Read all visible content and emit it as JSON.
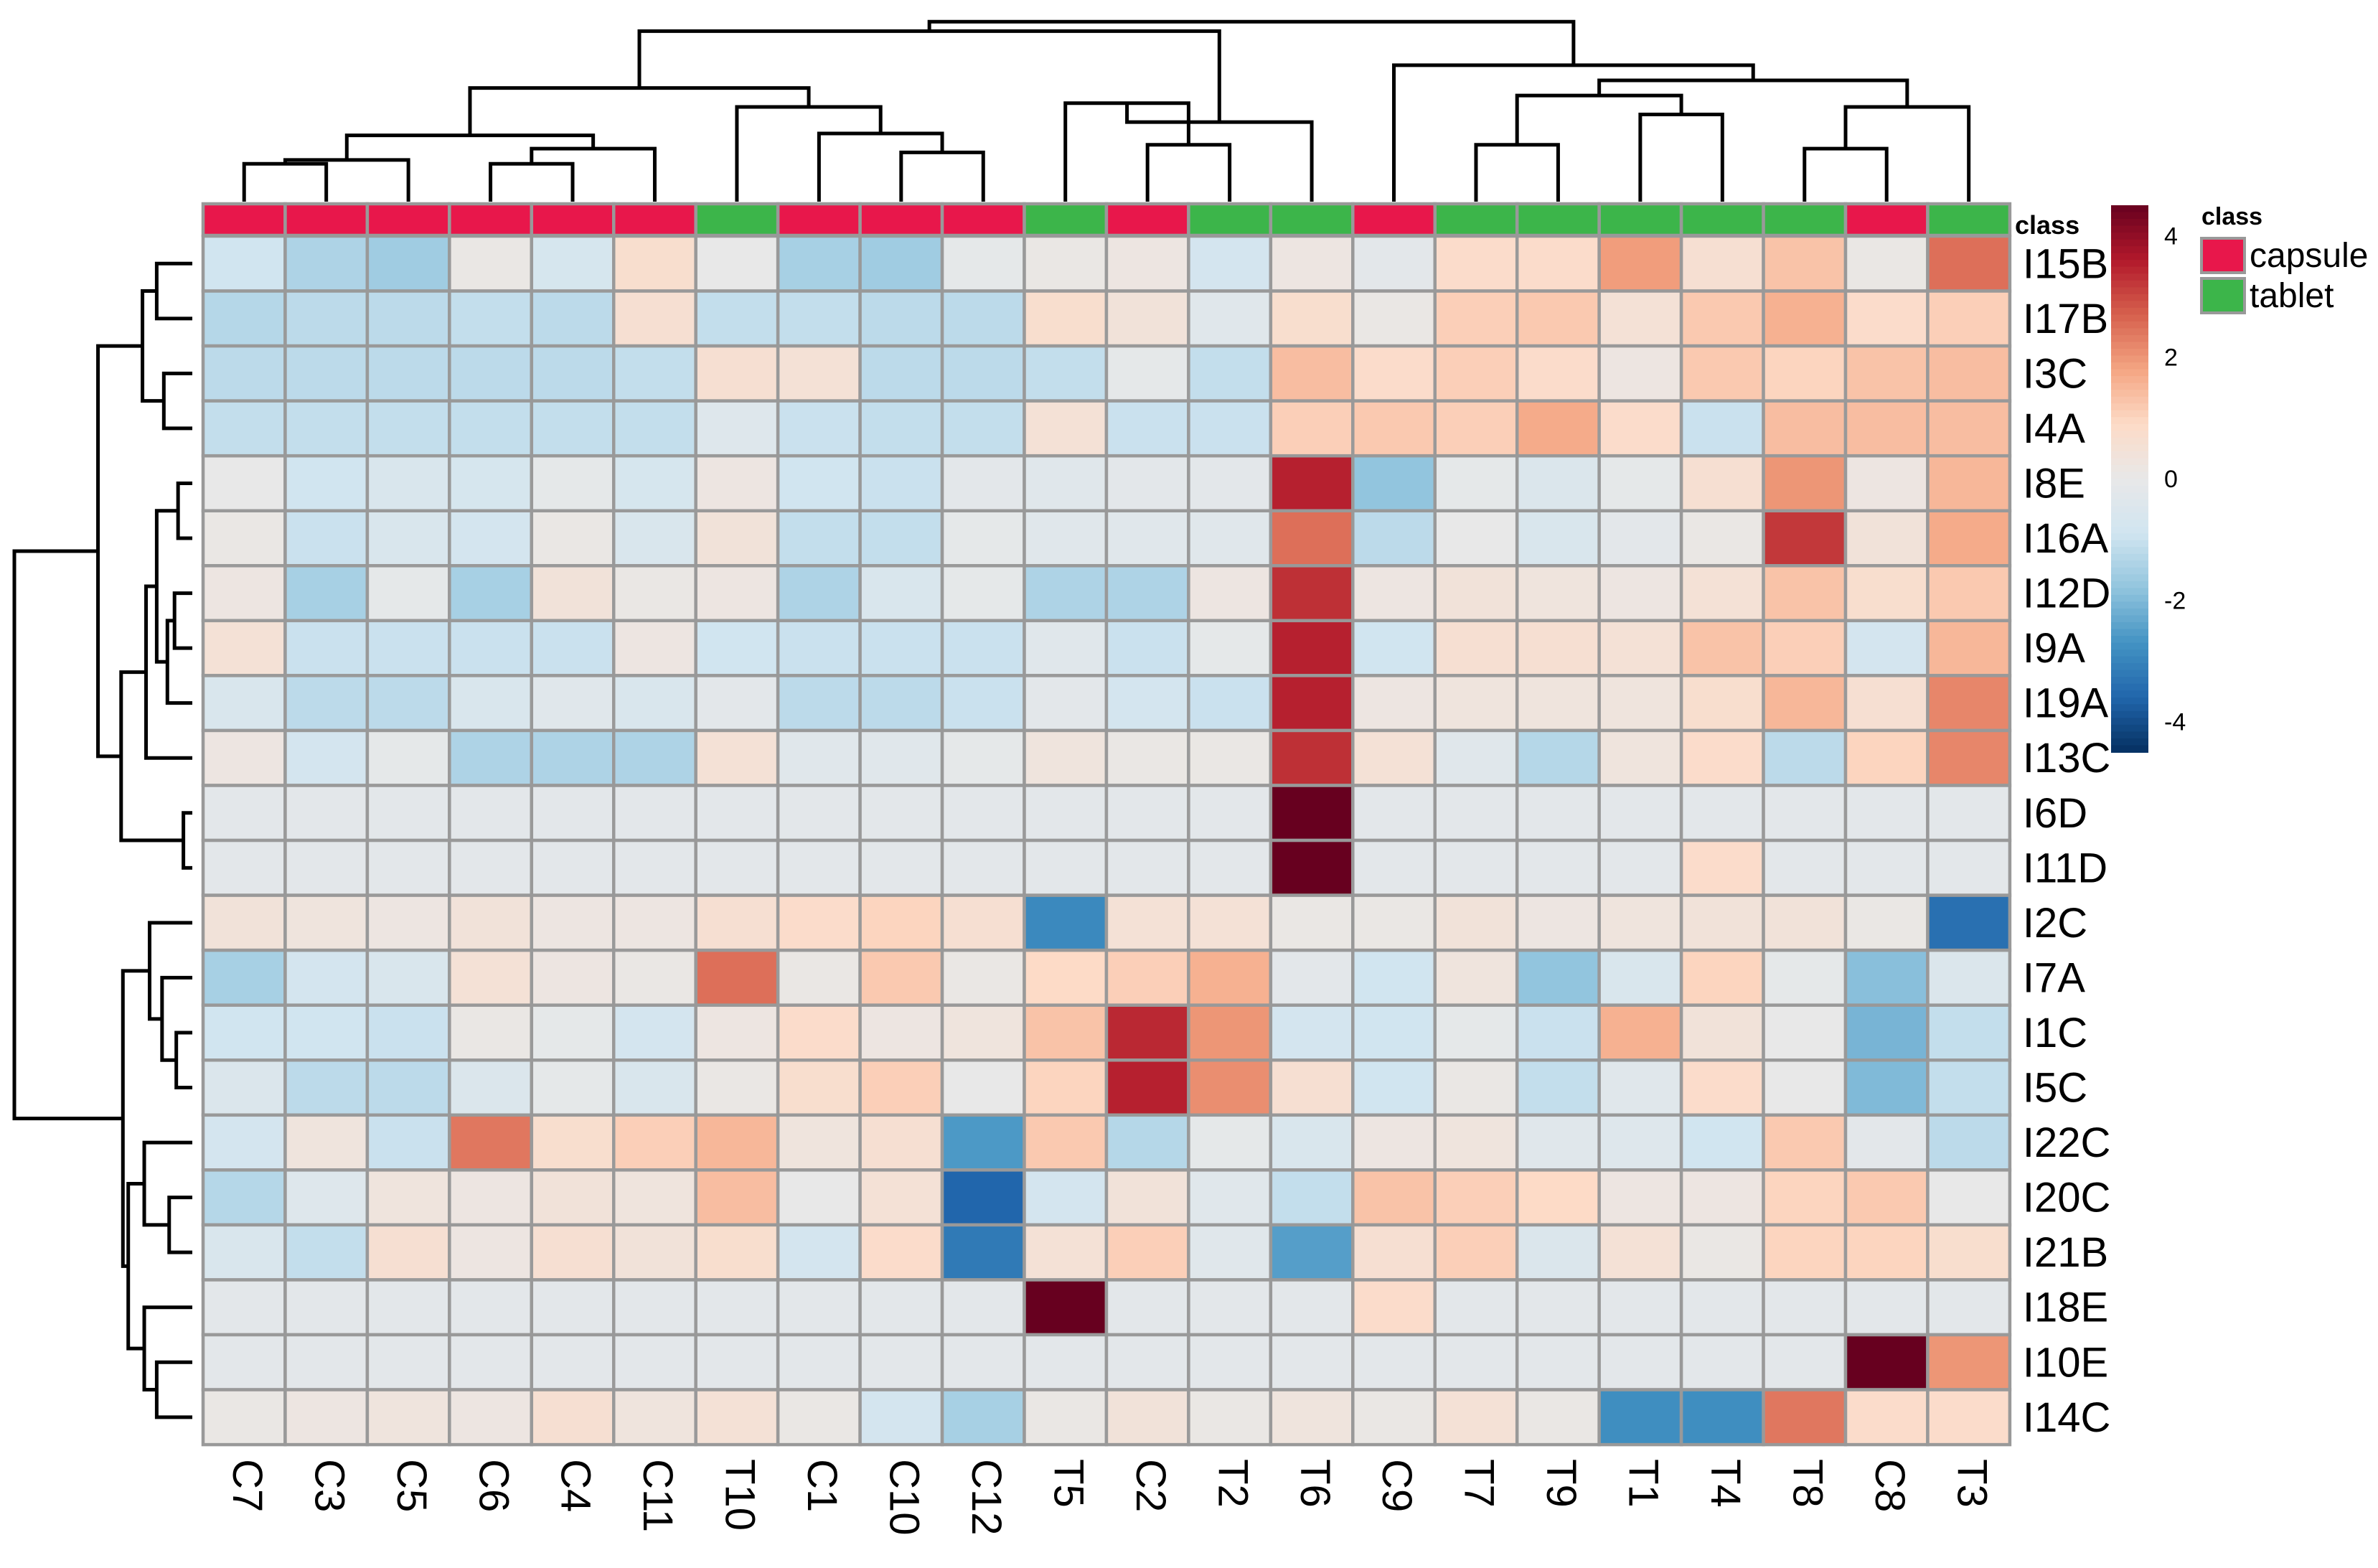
{
  "chart_data": {
    "type": "heatmap",
    "title": "",
    "rows": [
      "I15B",
      "I17B",
      "I3C",
      "I4A",
      "I8E",
      "I16A",
      "I12D",
      "I9A",
      "I19A",
      "I13C",
      "I6D",
      "I11D",
      "I2C",
      "I7A",
      "I1C",
      "I5C",
      "I22C",
      "I20C",
      "I21B",
      "I18E",
      "I10E",
      "I14C"
    ],
    "columns": [
      "C7",
      "C3",
      "C5",
      "C6",
      "C4",
      "C11",
      "T10",
      "C1",
      "C10",
      "C12",
      "T5",
      "C2",
      "T2",
      "T6",
      "C9",
      "T7",
      "T9",
      "T1",
      "T4",
      "T8",
      "C8",
      "T3"
    ],
    "column_class": [
      "capsule",
      "capsule",
      "capsule",
      "capsule",
      "capsule",
      "capsule",
      "tablet",
      "capsule",
      "capsule",
      "capsule",
      "tablet",
      "capsule",
      "tablet",
      "tablet",
      "capsule",
      "tablet",
      "tablet",
      "tablet",
      "tablet",
      "tablet",
      "capsule",
      "tablet"
    ],
    "values": [
      [
        -0.9,
        -1.4,
        -1.6,
        0.1,
        -0.7,
        0.7,
        0.0,
        -1.5,
        -1.6,
        -0.1,
        0.1,
        0.2,
        -0.8,
        0.2,
        -0.2,
        0.8,
        0.8,
        1.9,
        0.6,
        1.3,
        0.1,
        2.5
      ],
      [
        -1.3,
        -1.2,
        -1.2,
        -1.1,
        -1.2,
        0.6,
        -1.1,
        -1.1,
        -1.2,
        -1.2,
        0.7,
        0.4,
        -0.3,
        0.7,
        0.1,
        1.1,
        1.2,
        0.5,
        1.2,
        1.6,
        0.8,
        1.1
      ],
      [
        -1.2,
        -1.2,
        -1.2,
        -1.2,
        -1.2,
        -1.1,
        0.6,
        0.5,
        -1.2,
        -1.2,
        -1.1,
        -0.1,
        -1.1,
        1.4,
        0.8,
        1.1,
        0.8,
        0.2,
        1.2,
        1.0,
        1.3,
        1.4
      ],
      [
        -1.1,
        -1.1,
        -1.1,
        -1.1,
        -1.1,
        -1.1,
        -0.4,
        -1.0,
        -1.1,
        -1.1,
        0.5,
        -1.0,
        -1.0,
        1.1,
        1.2,
        1.1,
        1.7,
        0.8,
        -1.0,
        1.4,
        1.4,
        1.4
      ],
      [
        0.0,
        -0.9,
        -0.6,
        -0.7,
        -0.1,
        -0.7,
        0.2,
        -0.9,
        -1.0,
        -0.2,
        -0.3,
        -0.2,
        -0.2,
        3.5,
        -1.8,
        -0.1,
        -0.5,
        -0.1,
        0.6,
        2.0,
        0.2,
        1.5
      ],
      [
        0.1,
        -1.0,
        -0.6,
        -0.8,
        0.1,
        -0.6,
        0.4,
        -1.1,
        -1.1,
        -0.1,
        -0.3,
        -0.3,
        -0.3,
        2.5,
        -1.2,
        0.0,
        -0.6,
        -0.2,
        0.1,
        3.2,
        0.4,
        1.7
      ],
      [
        0.2,
        -1.5,
        -0.1,
        -1.5,
        0.4,
        0.1,
        0.2,
        -1.4,
        -0.6,
        -0.1,
        -1.4,
        -1.4,
        0.2,
        3.3,
        0.2,
        0.4,
        0.3,
        0.2,
        0.5,
        1.3,
        0.7,
        1.2
      ],
      [
        0.5,
        -1.0,
        -1.0,
        -1.0,
        -1.0,
        0.2,
        -0.9,
        -1.0,
        -1.0,
        -1.0,
        -0.3,
        -1.0,
        -0.1,
        3.5,
        -0.9,
        0.6,
        0.6,
        0.5,
        1.3,
        1.1,
        -0.8,
        1.5
      ],
      [
        -0.6,
        -1.2,
        -1.2,
        -0.6,
        -0.3,
        -0.6,
        -0.2,
        -1.2,
        -1.2,
        -1.0,
        -0.2,
        -0.8,
        -1.0,
        3.5,
        0.2,
        0.3,
        0.3,
        0.3,
        0.7,
        1.5,
        0.6,
        2.2
      ],
      [
        0.2,
        -0.8,
        -0.1,
        -1.4,
        -1.4,
        -1.4,
        0.5,
        -0.3,
        -0.3,
        -0.1,
        0.3,
        0.1,
        0.1,
        3.3,
        0.5,
        -0.3,
        -1.3,
        0.3,
        0.8,
        -1.2,
        1.0,
        2.2
      ],
      [
        -0.2,
        -0.2,
        -0.2,
        -0.2,
        -0.2,
        -0.2,
        -0.2,
        -0.2,
        -0.2,
        -0.2,
        -0.2,
        -0.2,
        -0.2,
        5.0,
        -0.2,
        -0.2,
        -0.2,
        -0.2,
        -0.2,
        -0.2,
        -0.2,
        -0.2
      ],
      [
        -0.2,
        -0.2,
        -0.2,
        -0.2,
        -0.2,
        -0.2,
        -0.2,
        -0.2,
        -0.2,
        -0.2,
        -0.2,
        -0.2,
        -0.2,
        5.0,
        -0.2,
        -0.2,
        -0.2,
        -0.2,
        0.8,
        -0.2,
        -0.2,
        -0.2
      ],
      [
        0.4,
        0.3,
        0.2,
        0.4,
        0.2,
        0.2,
        0.6,
        0.8,
        1.0,
        0.6,
        -2.9,
        0.5,
        0.5,
        0.1,
        0.1,
        0.4,
        0.2,
        0.3,
        0.4,
        0.4,
        0.1,
        -3.4
      ],
      [
        -1.5,
        -0.8,
        -0.6,
        0.5,
        0.2,
        0.1,
        2.5,
        0.1,
        1.2,
        0.1,
        0.9,
        1.1,
        1.6,
        -0.2,
        -0.9,
        0.3,
        -1.8,
        -0.6,
        1.0,
        -0.1,
        -1.9,
        -0.5
      ],
      [
        -0.9,
        -0.9,
        -1.0,
        0.1,
        -0.1,
        -0.8,
        0.2,
        0.8,
        0.2,
        0.3,
        1.3,
        3.4,
        2.0,
        -0.8,
        -0.9,
        -0.1,
        -1.0,
        1.6,
        0.4,
        0.0,
        -2.1,
        -1.1
      ],
      [
        -0.5,
        -1.2,
        -1.2,
        -0.5,
        -0.1,
        -0.6,
        0.1,
        0.7,
        1.1,
        0.0,
        1.0,
        3.5,
        2.1,
        0.6,
        -0.9,
        0.1,
        -1.1,
        -0.3,
        0.8,
        0.0,
        -2.0,
        -1.1
      ],
      [
        -0.8,
        0.3,
        -1.0,
        2.4,
        0.7,
        1.1,
        1.5,
        0.3,
        0.6,
        -2.6,
        1.2,
        -1.3,
        -0.1,
        -0.6,
        0.2,
        0.3,
        -0.3,
        -0.4,
        -0.9,
        1.2,
        -0.2,
        -1.2
      ],
      [
        -1.3,
        -0.4,
        0.3,
        0.2,
        0.4,
        0.3,
        1.4,
        0.0,
        0.5,
        -3.6,
        -0.8,
        0.4,
        -0.3,
        -1.1,
        1.3,
        1.1,
        0.9,
        0.2,
        0.2,
        1.0,
        1.2,
        0.0
      ],
      [
        -0.6,
        -1.1,
        0.6,
        0.2,
        0.6,
        0.4,
        0.7,
        -0.8,
        0.8,
        -3.2,
        0.5,
        1.1,
        -0.3,
        -2.5,
        0.6,
        1.1,
        -0.5,
        0.5,
        0.1,
        1.0,
        1.0,
        0.7
      ],
      [
        -0.2,
        -0.2,
        -0.2,
        -0.2,
        -0.2,
        -0.2,
        -0.2,
        -0.2,
        -0.2,
        -0.2,
        5.0,
        -0.2,
        -0.2,
        -0.2,
        0.8,
        -0.2,
        -0.2,
        -0.2,
        -0.2,
        -0.2,
        -0.2,
        -0.2
      ],
      [
        -0.2,
        -0.2,
        -0.2,
        -0.2,
        -0.2,
        -0.2,
        -0.2,
        -0.2,
        -0.2,
        -0.2,
        -0.2,
        -0.2,
        -0.2,
        -0.2,
        -0.2,
        -0.2,
        -0.2,
        -0.2,
        -0.2,
        -0.2,
        4.6,
        2.0
      ],
      [
        0.1,
        0.2,
        0.3,
        0.2,
        0.6,
        0.3,
        0.5,
        0.1,
        -0.8,
        -1.5,
        0.1,
        0.4,
        0.1,
        0.3,
        0.1,
        0.5,
        0.1,
        -2.8,
        -2.8,
        2.4,
        0.8,
        0.8
      ]
    ],
    "color_scale": {
      "min": -4.5,
      "max": 4.5,
      "stops": [
        "#053061",
        "#2166AC",
        "#4393C3",
        "#92C5DE",
        "#D1E5F0",
        "#E8E8E8",
        "#FDDBC7",
        "#F4A582",
        "#D6604D",
        "#B2182B",
        "#67001F"
      ],
      "ticks": [
        4,
        2,
        0,
        -2,
        -4
      ]
    },
    "annotation": {
      "title": "class",
      "levels": [
        "capsule",
        "tablet"
      ],
      "colors": {
        "capsule": "#E8174B",
        "tablet": "#3CB54A"
      }
    },
    "cell_border_color": "#999999",
    "dendrogram_color": "#000000",
    "legend_placement": "right",
    "col_dendrogram": [
      [
        0,
        1,
        0.2
      ],
      [
        2,
        22,
        0.22
      ],
      [
        3,
        4,
        0.2
      ],
      [
        5,
        24,
        0.28
      ],
      [
        23,
        25,
        0.35
      ],
      [
        8,
        9,
        0.26
      ],
      [
        7,
        27,
        0.36
      ],
      [
        28,
        6,
        0.5
      ],
      [
        26,
        29,
        0.6
      ],
      [
        11,
        12,
        0.3
      ],
      [
        10,
        31,
        0.52
      ],
      [
        32,
        13,
        0.42
      ],
      [
        30,
        33,
        0.9
      ],
      [
        15,
        16,
        0.3
      ],
      [
        17,
        18,
        0.46
      ],
      [
        35,
        36,
        0.56
      ],
      [
        19,
        20,
        0.28
      ],
      [
        21,
        38,
        0.5
      ],
      [
        37,
        39,
        0.64
      ],
      [
        14,
        40,
        0.72
      ],
      [
        34,
        41,
        0.95
      ]
    ],
    "row_dendrogram": [
      [
        0,
        1,
        0.2
      ],
      [
        2,
        3,
        0.16
      ],
      [
        22,
        23,
        0.28
      ],
      [
        4,
        5,
        0.08
      ],
      [
        6,
        7,
        0.1
      ],
      [
        26,
        8,
        0.14
      ],
      [
        25,
        27,
        0.2
      ],
      [
        28,
        9,
        0.26
      ],
      [
        10,
        11,
        0.05
      ],
      [
        29,
        30,
        0.4
      ],
      [
        24,
        31,
        0.53
      ],
      [
        14,
        15,
        0.09
      ],
      [
        13,
        33,
        0.17
      ],
      [
        12,
        34,
        0.24
      ],
      [
        17,
        18,
        0.13
      ],
      [
        16,
        36,
        0.27
      ],
      [
        20,
        21,
        0.2
      ],
      [
        19,
        38,
        0.27
      ],
      [
        37,
        39,
        0.36
      ],
      [
        35,
        40,
        0.39
      ],
      [
        32,
        41,
        1.0
      ]
    ]
  }
}
